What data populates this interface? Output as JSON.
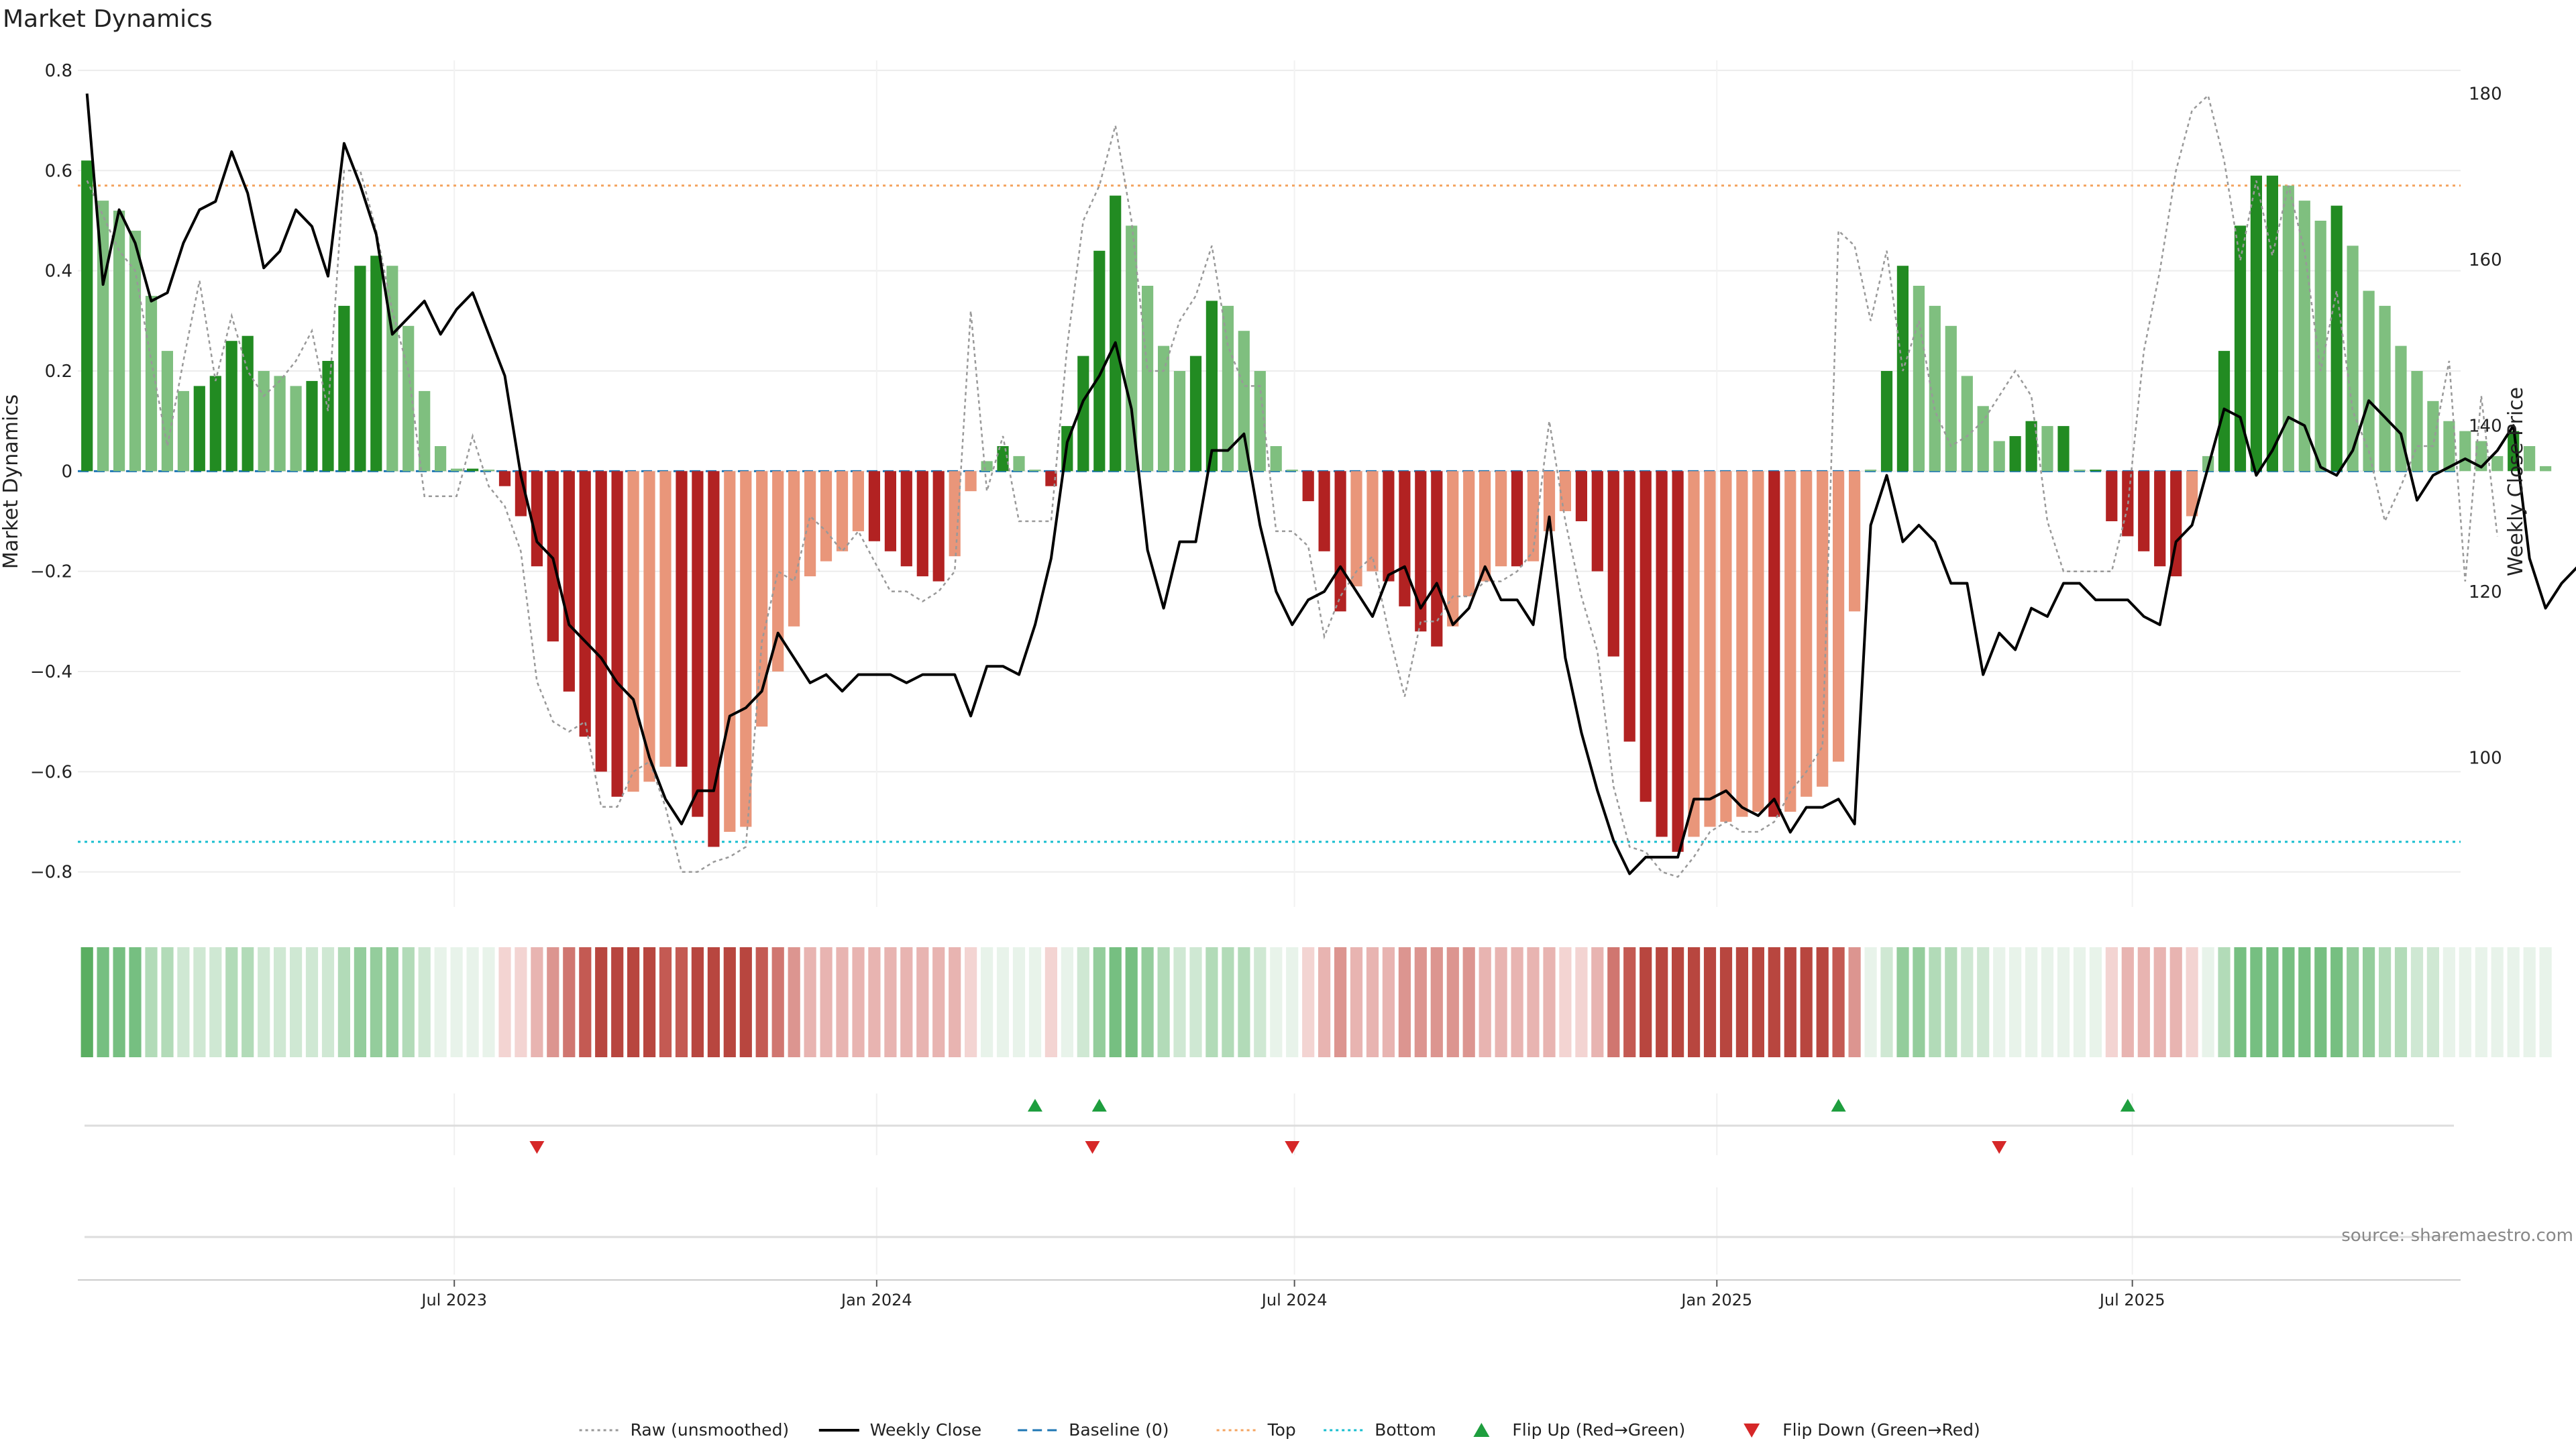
{
  "title": "Market Dynamics",
  "source": "source: sharemaestro.com",
  "colors": {
    "strong_green": "#228B22",
    "light_green": "#7FBF7F",
    "strong_red": "#B22222",
    "light_red": "#E9967A",
    "raw_line": "#999999",
    "close_line": "#000000",
    "baseline": "#1F77B4",
    "top": "#F4A460",
    "bottom": "#17BECF",
    "flip_up": "#1E9E3E",
    "flip_down": "#D62728",
    "heat_green": "#5AAE61",
    "heat_red": "#C0504D"
  },
  "chart_data": {
    "type": "bar",
    "title": "Market Dynamics",
    "ylabel_left": "Market Dynamics",
    "ylabel_right": "Weekly Close Price",
    "ylim_left": [
      -0.87,
      0.82
    ],
    "ylim_right": [
      82,
      184
    ],
    "yticks_left": [
      "0.8",
      "0.6",
      "0.4",
      "0.2",
      "0",
      "−0.2",
      "−0.4",
      "−0.6",
      "−0.8"
    ],
    "yticks_left_values": [
      0.8,
      0.6,
      0.4,
      0.2,
      0,
      -0.2,
      -0.4,
      -0.6,
      -0.8
    ],
    "yticks_right": [
      "180",
      "160",
      "140",
      "120",
      "100"
    ],
    "yticks_right_values": [
      180,
      160,
      140,
      120,
      100
    ],
    "x_start": "2023-01-22",
    "x_step_days": 7,
    "xlim": [
      "2023-01-18",
      "2025-11-21"
    ],
    "xticks": [
      {
        "label": "Jul 2023",
        "date": "2023-07-01"
      },
      {
        "label": "Jan 2024",
        "date": "2024-01-01"
      },
      {
        "label": "Jul 2024",
        "date": "2024-07-01"
      },
      {
        "label": "Jan 2025",
        "date": "2025-01-01"
      },
      {
        "label": "Jul 2025",
        "date": "2025-07-01"
      }
    ],
    "grid": true,
    "top_level": 0.57,
    "bottom_level": -0.74,
    "baseline_level": 0,
    "smoothed_values": [
      0.62,
      0.54,
      0.52,
      0.48,
      0.35,
      0.24,
      0.16,
      0.17,
      0.19,
      0.26,
      0.27,
      0.2,
      0.19,
      0.17,
      0.18,
      0.22,
      0.33,
      0.41,
      0.43,
      0.41,
      0.29,
      0.16,
      0.05,
      0.005,
      0.005,
      0.003,
      -0.03,
      -0.09,
      -0.19,
      -0.34,
      -0.44,
      -0.53,
      -0.6,
      -0.65,
      -0.64,
      -0.62,
      -0.59,
      -0.59,
      -0.69,
      -0.75,
      -0.72,
      -0.71,
      -0.51,
      -0.4,
      -0.31,
      -0.21,
      -0.18,
      -0.16,
      -0.12,
      -0.14,
      -0.16,
      -0.19,
      -0.21,
      -0.22,
      -0.17,
      -0.04,
      0.02,
      0.05,
      0.03,
      0.003,
      -0.03,
      0.09,
      0.23,
      0.44,
      0.55,
      0.49,
      0.37,
      0.25,
      0.2,
      0.23,
      0.34,
      0.33,
      0.28,
      0.2,
      0.05,
      0.003,
      -0.06,
      -0.16,
      -0.28,
      -0.23,
      -0.2,
      -0.22,
      -0.27,
      -0.32,
      -0.35,
      -0.31,
      -0.25,
      -0.22,
      -0.19,
      -0.19,
      -0.18,
      -0.12,
      -0.08,
      -0.1,
      -0.2,
      -0.37,
      -0.54,
      -0.66,
      -0.73,
      -0.76,
      -0.73,
      -0.71,
      -0.7,
      -0.69,
      -0.68,
      -0.69,
      -0.68,
      -0.65,
      -0.63,
      -0.58,
      -0.28,
      0.003,
      0.2,
      0.41,
      0.37,
      0.33,
      0.29,
      0.19,
      0.13,
      0.06,
      0.07,
      0.1,
      0.09,
      0.09,
      0.003,
      0.003,
      -0.1,
      -0.13,
      -0.16,
      -0.19,
      -0.21,
      -0.09,
      0.03,
      0.24,
      0.49,
      0.59,
      0.59,
      0.57,
      0.54,
      0.5,
      0.53,
      0.45,
      0.36,
      0.33,
      0.25,
      0.2,
      0.14,
      0.1,
      0.08,
      0.06,
      0.03,
      0.08,
      0.05,
      0.01
    ],
    "raw_values": [
      0.58,
      0.51,
      0.44,
      0.4,
      0.22,
      0.05,
      0.22,
      0.38,
      0.18,
      0.31,
      0.2,
      0.15,
      0.18,
      0.22,
      0.28,
      0.12,
      0.6,
      0.6,
      0.48,
      0.32,
      0.2,
      -0.05,
      -0.05,
      -0.05,
      0.07,
      -0.03,
      -0.07,
      -0.16,
      -0.42,
      -0.5,
      -0.52,
      -0.5,
      -0.67,
      -0.67,
      -0.6,
      -0.58,
      -0.67,
      -0.8,
      -0.8,
      -0.78,
      -0.77,
      -0.75,
      -0.34,
      -0.2,
      -0.22,
      -0.09,
      -0.12,
      -0.16,
      -0.12,
      -0.18,
      -0.24,
      -0.24,
      -0.26,
      -0.24,
      -0.2,
      0.32,
      -0.04,
      0.07,
      -0.1,
      -0.1,
      -0.1,
      0.25,
      0.5,
      0.57,
      0.69,
      0.5,
      0.2,
      0.2,
      0.3,
      0.35,
      0.45,
      0.25,
      0.17,
      0.17,
      -0.12,
      -0.12,
      -0.15,
      -0.33,
      -0.25,
      -0.2,
      -0.17,
      -0.32,
      -0.45,
      -0.3,
      -0.3,
      -0.25,
      -0.25,
      -0.22,
      -0.22,
      -0.2,
      -0.16,
      0.1,
      -0.1,
      -0.25,
      -0.36,
      -0.63,
      -0.75,
      -0.76,
      -0.8,
      -0.81,
      -0.77,
      -0.72,
      -0.7,
      -0.72,
      -0.72,
      -0.7,
      -0.64,
      -0.6,
      -0.55,
      0.48,
      0.45,
      0.3,
      0.44,
      0.2,
      0.3,
      0.12,
      0.05,
      0.07,
      0.1,
      0.15,
      0.2,
      0.15,
      -0.1,
      -0.2,
      -0.2,
      -0.2,
      -0.2,
      -0.07,
      0.24,
      0.4,
      0.6,
      0.72,
      0.75,
      0.62,
      0.42,
      0.58,
      0.43,
      0.57,
      0.44,
      0.2,
      0.36,
      0.12,
      0.04,
      -0.1,
      -0.03,
      0.05,
      0.05,
      0.22,
      -0.22,
      0.15,
      -0.13
    ],
    "close_values": [
      180,
      157,
      166,
      162,
      155,
      156,
      162,
      166,
      167,
      173,
      168,
      159,
      161,
      166,
      164,
      158,
      174,
      169,
      163,
      151,
      153,
      155,
      151,
      154,
      156,
      151,
      146,
      134,
      126,
      124,
      116,
      114,
      112,
      109,
      107,
      100,
      95,
      92,
      96,
      96,
      105,
      106,
      108,
      115,
      112,
      109,
      110,
      108,
      110,
      110,
      110,
      109,
      110,
      110,
      110,
      105,
      111,
      111,
      110,
      116,
      124,
      138,
      143,
      146,
      150,
      142,
      125,
      118,
      126,
      126,
      137,
      137,
      139,
      128,
      120,
      116,
      119,
      120,
      123,
      120,
      117,
      122,
      123,
      118,
      121,
      116,
      118,
      123,
      119,
      119,
      116,
      129,
      112,
      103,
      96,
      90,
      86,
      88,
      88,
      88,
      95,
      95,
      96,
      94,
      93,
      95,
      91,
      94,
      94,
      95,
      92,
      128,
      134,
      126,
      128,
      126,
      121,
      121,
      110,
      115,
      113,
      118,
      117,
      121,
      121,
      119,
      119,
      119,
      117,
      116,
      126,
      128,
      135,
      142,
      141,
      134,
      137,
      141,
      140,
      135,
      134,
      137,
      143,
      141,
      139,
      131,
      134,
      135,
      136,
      135,
      137,
      140,
      124,
      118,
      121,
      123,
      120
    ],
    "heatmap": {
      "palette": [
        "#e8f3ea",
        "#cfe8d3",
        "#b2dbb8",
        "#94cd9c",
        "#76bf81",
        "#5aae61",
        "#f3d4d2",
        "#e8b4b1",
        "#dc9590",
        "#d07670",
        "#c45a53",
        "#b8463f"
      ]
    },
    "flip_up_dates": [
      "2024-03-10",
      "2024-04-07",
      "2025-02-23",
      "2025-06-29"
    ],
    "flip_down_dates": [
      "2023-08-06",
      "2024-04-04",
      "2024-06-30",
      "2025-05-04"
    ],
    "legend": {
      "placement": "bottom-center",
      "entries": [
        {
          "label": "Raw (unsmoothed)",
          "kind": "dotted-line",
          "color": "#999999"
        },
        {
          "label": "Weekly Close",
          "kind": "line",
          "color": "#000000"
        },
        {
          "label": "Baseline (0)",
          "kind": "dashed-line",
          "color": "#1F77B4"
        },
        {
          "label": "Top",
          "kind": "dotted-line",
          "color": "#F4A460"
        },
        {
          "label": "Bottom",
          "kind": "dotted-line",
          "color": "#17BECF"
        },
        {
          "label": "Flip Up (Red→Green)",
          "kind": "triangle-up",
          "color": "#1E9E3E"
        },
        {
          "label": "Flip Down (Green→Red)",
          "kind": "triangle-down",
          "color": "#D62728"
        }
      ]
    }
  }
}
